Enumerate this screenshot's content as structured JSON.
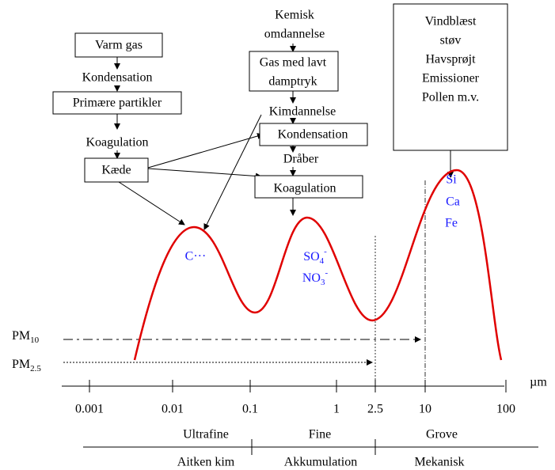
{
  "left_chain": [
    "Varm gas",
    "Kondensation",
    "Primære partikler",
    "Koagulation",
    "Kæde"
  ],
  "middle_chain": {
    "top": [
      "Kemisk",
      "omdannelse"
    ],
    "box1": [
      "Gas med lavt",
      "damptryk"
    ],
    "step1": "Kimdannelse",
    "box2": "Kondensation",
    "step2": "Dråber",
    "box3": "Koagulation"
  },
  "right_box": [
    "Vindblæst",
    "støv",
    "Havsprøjt",
    "Emissioner",
    "Pollen m.v."
  ],
  "peak_labels": {
    "ultrafine": "C···",
    "fine": [
      {
        "base": "SO",
        "sub": "4",
        "sup": "-"
      },
      {
        "base": "NO",
        "sub": "3",
        "sup": "-"
      }
    ],
    "coarse": [
      "Si",
      "Ca",
      "Fe"
    ]
  },
  "pm_labels": [
    {
      "base": "PM",
      "sub": "10"
    },
    {
      "base": "PM",
      "sub": "2.5"
    }
  ],
  "axis": {
    "ticks": [
      "0.001",
      "0.01",
      "0.1",
      "1",
      "2.5",
      "10",
      "100"
    ],
    "unit": "µm"
  },
  "ranges_top": [
    "Ultrafine",
    "Fine",
    "Grove"
  ],
  "ranges_bottom": [
    "Aitken kim",
    "Akkumulation",
    "Mekanisk"
  ]
}
